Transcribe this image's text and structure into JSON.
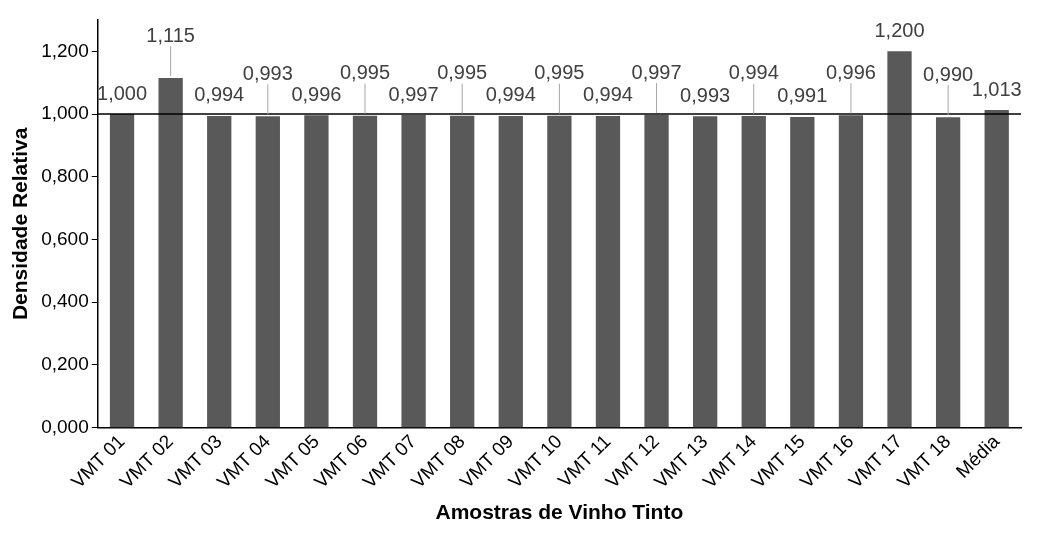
{
  "chart_data": {
    "type": "bar",
    "xlabel": "Amostras de Vinho Tinto",
    "ylabel": "Densidade Relativa",
    "categories": [
      "VMT 01",
      "VMT 02",
      "VMT 03",
      "VMT 04",
      "VMT 05",
      "VMT 06",
      "VMT 07",
      "VMT 08",
      "VMT 09",
      "VMT 10",
      "VMT 11",
      "VMT 12",
      "VMT 13",
      "VMT 14",
      "VMT 15",
      "VMT 16",
      "VMT 17",
      "VMT 18",
      "Média"
    ],
    "values": [
      1.0,
      1.115,
      0.994,
      0.993,
      0.996,
      0.995,
      0.997,
      0.995,
      0.994,
      0.995,
      0.994,
      0.997,
      0.993,
      0.994,
      0.991,
      0.996,
      1.2,
      0.99,
      1.013
    ],
    "value_labels": [
      "1,000",
      "1,115",
      "0,994",
      "0,993",
      "0,996",
      "0,995",
      "0,997",
      "0,995",
      "0,994",
      "0,995",
      "0,994",
      "0,997",
      "0,993",
      "0,994",
      "0,991",
      "0,996",
      "1,200",
      "0,990",
      "1,013"
    ],
    "color": "#595959",
    "ylim": [
      0,
      1.3
    ],
    "yticks": [
      {
        "value": 0,
        "label": "0,000"
      },
      {
        "value": 0.2,
        "label": "0,200"
      },
      {
        "value": 0.4,
        "label": "0,400"
      },
      {
        "value": 0.6,
        "label": "0,600"
      },
      {
        "value": 0.8,
        "label": "0,800"
      },
      {
        "value": 1.0,
        "label": "1,000"
      },
      {
        "value": 1.2,
        "label": "1,200"
      }
    ],
    "ref_lines": [
      {
        "axis": "y",
        "value": 1.0,
        "color": "#000000"
      }
    ],
    "grid": false,
    "legend": false
  }
}
